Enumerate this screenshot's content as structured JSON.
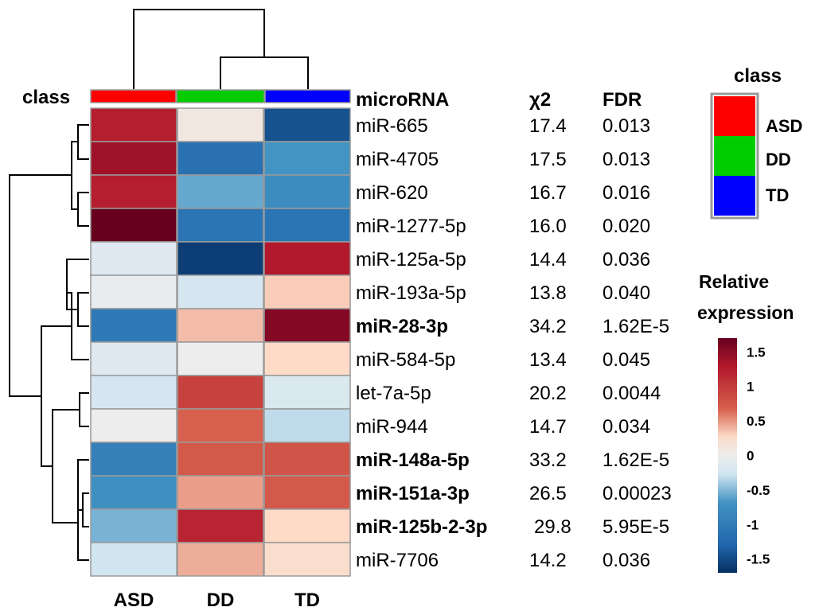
{
  "chart_data": {
    "type": "heatmap",
    "columns": [
      "ASD",
      "DD",
      "TD"
    ],
    "class_label": "class",
    "table_headers": {
      "row_label": "microRNA",
      "chi2": "χ2",
      "fdr": "FDR"
    },
    "rows": [
      {
        "name": "miR-665",
        "bold": false,
        "chi2": "17.4",
        "fdr": "0.013",
        "values": [
          1.25,
          0.1,
          -1.45
        ]
      },
      {
        "name": "miR-4705",
        "bold": false,
        "chi2": "17.5",
        "fdr": "0.013",
        "values": [
          1.4,
          -1.15,
          -0.7
        ]
      },
      {
        "name": "miR-620",
        "bold": false,
        "chi2": "16.7",
        "fdr": "0.016",
        "values": [
          1.25,
          -0.6,
          -0.8
        ]
      },
      {
        "name": "miR-1277-5p",
        "bold": false,
        "chi2": "16.0",
        "fdr": "0.020",
        "values": [
          1.7,
          -1.1,
          -1.1
        ]
      },
      {
        "name": "miR-125a-5p",
        "bold": false,
        "chi2": "14.4",
        "fdr": "0.036",
        "values": [
          -0.15,
          -1.6,
          1.3
        ]
      },
      {
        "name": "miR-193a-5p",
        "bold": false,
        "chi2": "13.8",
        "fdr": "0.040",
        "values": [
          -0.05,
          -0.25,
          0.35
        ]
      },
      {
        "name": "miR-28-3p",
        "bold": true,
        "chi2": "34.2",
        "fdr": "1.62E-5",
        "values": [
          -1.05,
          0.4,
          1.55
        ]
      },
      {
        "name": "miR-584-5p",
        "bold": false,
        "chi2": "13.4",
        "fdr": "0.045",
        "values": [
          -0.15,
          0.0,
          0.3
        ]
      },
      {
        "name": "let-7a-5p",
        "bold": false,
        "chi2": "20.2",
        "fdr": "0.0044",
        "values": [
          -0.25,
          0.95,
          -0.2
        ]
      },
      {
        "name": "miR-944",
        "bold": false,
        "chi2": "14.7",
        "fdr": "0.034",
        "values": [
          0.0,
          0.7,
          -0.35
        ]
      },
      {
        "name": "miR-148a-5p",
        "bold": true,
        "chi2": "33.2",
        "fdr": "1.62E-5",
        "values": [
          -0.95,
          0.75,
          0.8
        ]
      },
      {
        "name": "miR-151a-3p",
        "bold": true,
        "chi2": "26.5",
        "fdr": "0.00023",
        "values": [
          -0.75,
          0.5,
          0.75
        ]
      },
      {
        "name": "miR-125b-2-3p",
        "bold": true,
        "chi2": "29.8",
        "fdr": "5.95E-5",
        "values": [
          -0.55,
          1.2,
          0.3
        ]
      },
      {
        "name": "miR-7706",
        "bold": false,
        "chi2": "14.2",
        "fdr": "0.036",
        "values": [
          -0.3,
          0.45,
          0.25
        ]
      }
    ],
    "class_colors": {
      "ASD": "#ff0000",
      "DD": "#00cc00",
      "TD": "#0000ff"
    },
    "legend_class": {
      "title": "class",
      "entries": [
        {
          "label": "ASD",
          "color": "#ff0000"
        },
        {
          "label": "DD",
          "color": "#00cc00"
        },
        {
          "label": "TD",
          "color": "#0000ff"
        }
      ]
    },
    "color_scale": {
      "title_line1": "Relative",
      "title_line2": "expression",
      "min": -1.7,
      "max": 1.7,
      "low_color": "#053061",
      "mid_color": "#ededed",
      "high_color": "#67001f",
      "ticks": [
        "1.5",
        "1",
        "0.5",
        "0",
        "-0.5",
        "-1",
        "-1.5"
      ],
      "tick_values": [
        1.5,
        1,
        0.5,
        0,
        -0.5,
        -1,
        -1.5
      ]
    },
    "column_dendrogram": "ASD vs (DD, TD)",
    "row_dendrogram": "hierarchical clustering of 14 microRNAs"
  }
}
